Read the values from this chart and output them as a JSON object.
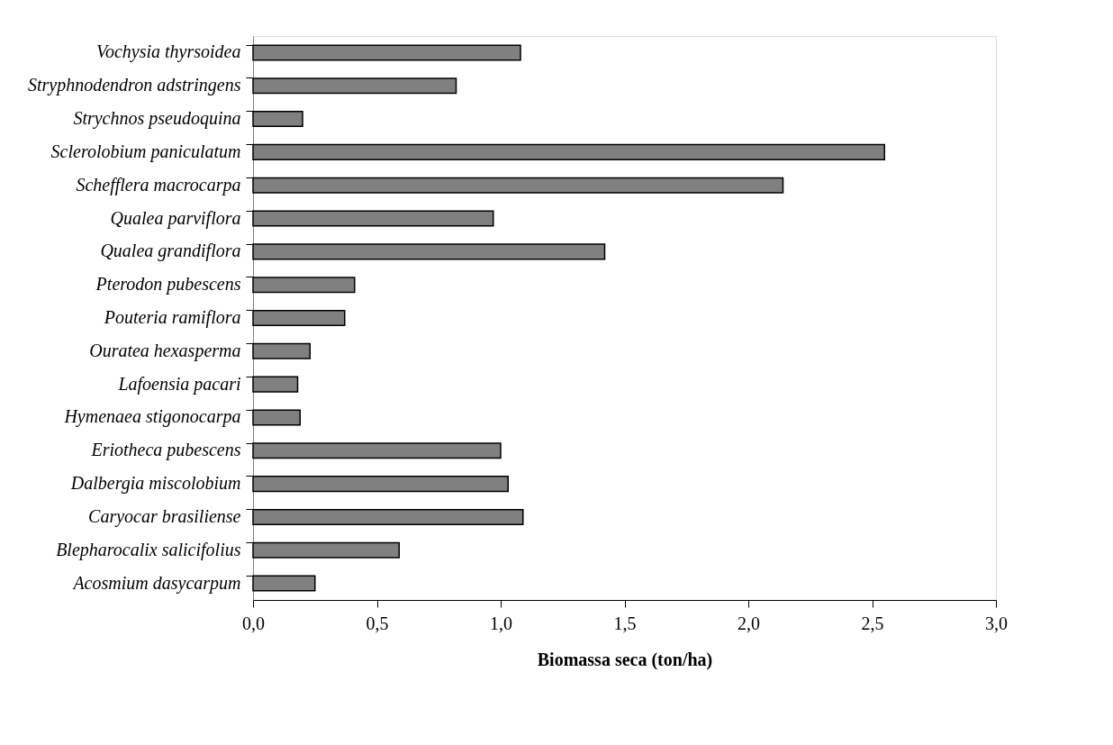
{
  "chart_data": {
    "type": "bar",
    "orientation": "horizontal",
    "xlabel": "Biomassa seca (ton/ha)",
    "categories": [
      "Vochysia thyrsoidea",
      "Stryphnodendron adstringens",
      "Strychnos pseudoquina",
      "Sclerolobium paniculatum",
      "Schefflera macrocarpa",
      "Qualea parviflora",
      "Qualea grandiflora",
      "Pterodon pubescens",
      "Pouteria ramiflora",
      "Ouratea hexasperma",
      "Lafoensia pacari",
      "Hymenaea stigonocarpa",
      "Eriotheca pubescens",
      "Dalbergia miscolobium",
      "Caryocar brasiliense",
      "Blepharocalix salicifolius",
      "Acosmium dasycarpum"
    ],
    "values": [
      1.08,
      0.82,
      0.2,
      2.55,
      2.14,
      0.97,
      1.42,
      0.41,
      0.37,
      0.23,
      0.18,
      0.19,
      1.0,
      1.03,
      1.09,
      0.59,
      0.25
    ],
    "color": "#808080",
    "xlim": [
      0,
      3
    ],
    "xticks": [
      {
        "value": 0,
        "label": "0,0"
      },
      {
        "value": 0.5,
        "label": "0,5"
      },
      {
        "value": 1,
        "label": "1,0"
      },
      {
        "value": 1.5,
        "label": "1,5"
      },
      {
        "value": 2,
        "label": "2,0"
      },
      {
        "value": 2.5,
        "label": "2,5"
      },
      {
        "value": 3,
        "label": "3,0"
      }
    ],
    "grid": false
  }
}
